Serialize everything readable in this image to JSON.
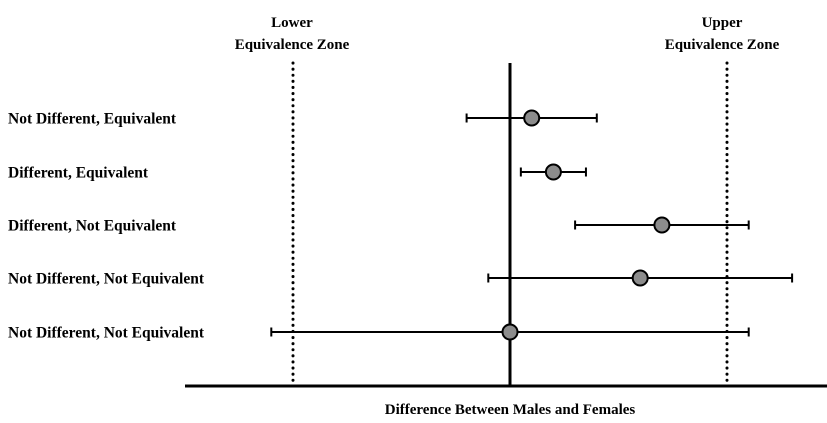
{
  "chart_data": {
    "type": "forest",
    "xlabel": "Difference Between Males and Females",
    "xlim": [
      -1.0,
      1.45
    ],
    "reference_line": 0,
    "equivalence_bounds": [
      -1.0,
      1.0
    ],
    "zones": {
      "lower": [
        "Lower",
        "Equivalence Zone"
      ],
      "upper": [
        "Upper",
        "Equivalence Zone"
      ]
    },
    "rows": [
      {
        "label": "Not Different, Equivalent",
        "estimate": 0.1,
        "lower": -0.2,
        "upper": 0.4
      },
      {
        "label": "Different, Equivalent",
        "estimate": 0.2,
        "lower": 0.05,
        "upper": 0.35
      },
      {
        "label": "Different, Not Equivalent",
        "estimate": 0.7,
        "lower": 0.3,
        "upper": 1.1
      },
      {
        "label": "Not Different, Not Equivalent",
        "estimate": 0.6,
        "lower": -0.1,
        "upper": 1.3
      },
      {
        "label": "Not Different, Not Equivalent",
        "estimate": 0.0,
        "lower": -1.1,
        "upper": 1.1
      }
    ],
    "marker_color": "#8c8c8c",
    "grid": false
  }
}
